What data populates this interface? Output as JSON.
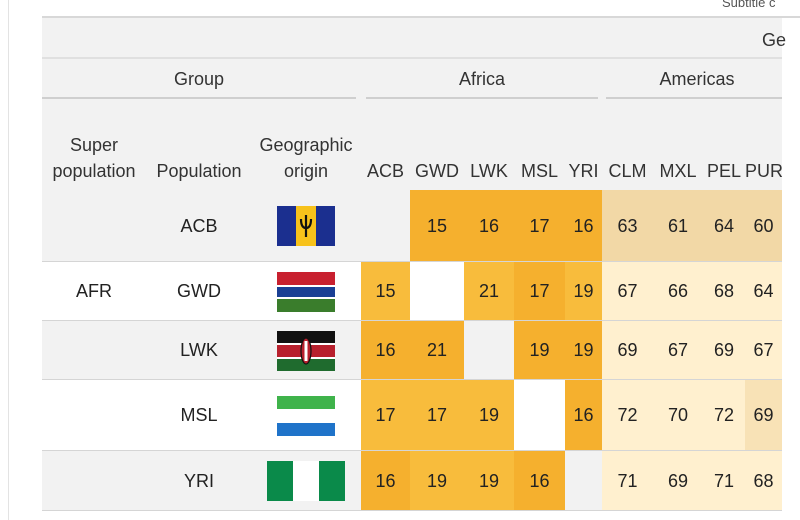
{
  "header": {
    "subtitle_stub": "Subtitle c",
    "geo_spanner": "Ge",
    "group_spanner": "Group",
    "africa_spanner": "Africa",
    "americas_spanner": "Americas",
    "columns": {
      "super_population": "Super population",
      "population": "Population",
      "geographic_origin": "Geographic origin",
      "africa": [
        "ACB",
        "GWD",
        "LWK",
        "MSL",
        "YRI"
      ],
      "americas": [
        "CLM",
        "MXL",
        "PEL",
        "PUR"
      ]
    }
  },
  "colors": {
    "header_band": "#f2f2f2",
    "africa_dark": "#f5b02e",
    "africa_mid": "#f8bc3c",
    "americas_light": "#fff0cf",
    "americas_mid": "#f8e2b6",
    "americas_tan": "#f2d8a6"
  },
  "rows": [
    {
      "super": "",
      "population": "ACB",
      "flag": "barbados-flag",
      "africa": [
        "",
        "15",
        "16",
        "17",
        "16"
      ],
      "americas": [
        "63",
        "61",
        "64",
        "60"
      ]
    },
    {
      "super": "AFR",
      "population": "GWD",
      "flag": "gambia-flag",
      "africa": [
        "15",
        "",
        "21",
        "17",
        "19"
      ],
      "americas": [
        "67",
        "66",
        "68",
        "64"
      ]
    },
    {
      "super": "",
      "population": "LWK",
      "flag": "kenya-flag",
      "africa": [
        "16",
        "21",
        "",
        "19",
        "19"
      ],
      "americas": [
        "69",
        "67",
        "69",
        "67"
      ]
    },
    {
      "super": "",
      "population": "MSL",
      "flag": "sierra-leone-flag",
      "africa": [
        "17",
        "17",
        "19",
        "",
        "16"
      ],
      "americas": [
        "72",
        "70",
        "72",
        "69"
      ]
    },
    {
      "super": "",
      "population": "YRI",
      "flag": "nigeria-flag",
      "africa": [
        "16",
        "19",
        "19",
        "16",
        ""
      ],
      "americas": [
        "71",
        "69",
        "71",
        "68"
      ]
    }
  ]
}
